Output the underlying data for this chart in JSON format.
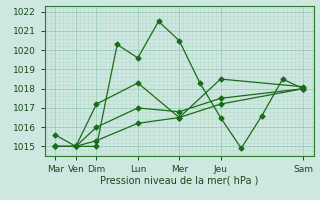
{
  "xlabel": "Pression niveau de la mer( hPa )",
  "bg_color": "#cce8e0",
  "grid_major_color": "#99ccbb",
  "grid_minor_color": "#bbddcc",
  "line_color": "#1a6b1a",
  "ylim": [
    1014.5,
    1022.3
  ],
  "yticks": [
    1015,
    1016,
    1017,
    1018,
    1019,
    1020,
    1021,
    1022
  ],
  "x_labels": [
    "Mar",
    "Ven",
    "Dim",
    "Lun",
    "Mer",
    "Jeu",
    "Sam"
  ],
  "x_positions": [
    0,
    1,
    2,
    4,
    6,
    8,
    12
  ],
  "xlim": [
    -0.5,
    12.5
  ],
  "series1_x": [
    0,
    1,
    2,
    3,
    4,
    5,
    6,
    7,
    8,
    9,
    10,
    11,
    12
  ],
  "series1_y": [
    1015.6,
    1015.0,
    1015.0,
    1020.3,
    1019.6,
    1021.5,
    1020.5,
    1018.3,
    1016.5,
    1014.9,
    1016.6,
    1018.5,
    1018.0
  ],
  "series2_x": [
    0,
    1,
    2,
    4,
    6,
    8,
    12
  ],
  "series2_y": [
    1015.0,
    1015.0,
    1017.2,
    1018.3,
    1016.5,
    1018.5,
    1018.1
  ],
  "series3_x": [
    0,
    1,
    2,
    4,
    6,
    8,
    12
  ],
  "series3_y": [
    1015.0,
    1015.0,
    1016.0,
    1017.0,
    1016.8,
    1017.5,
    1018.0
  ],
  "series4_x": [
    0,
    1,
    2,
    4,
    6,
    8,
    12
  ],
  "series4_y": [
    1015.0,
    1015.0,
    1015.3,
    1016.2,
    1016.5,
    1017.2,
    1018.0
  ],
  "lw": 0.9,
  "ms": 2.5
}
